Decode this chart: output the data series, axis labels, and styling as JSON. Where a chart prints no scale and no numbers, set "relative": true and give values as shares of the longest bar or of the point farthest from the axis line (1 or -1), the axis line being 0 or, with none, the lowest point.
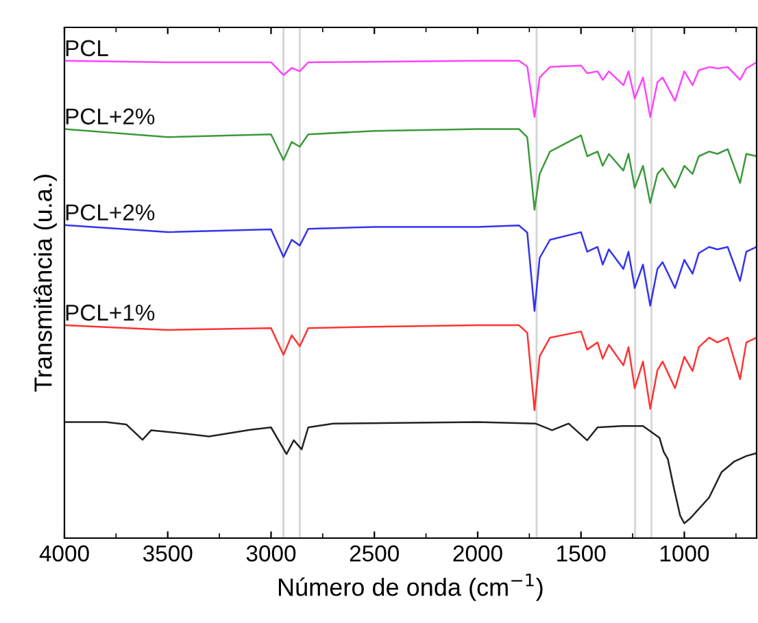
{
  "chart_data": {
    "type": "line",
    "relative": true,
    "xlabel": "Número de onda (cm$^{−1}$)",
    "ylabel": "Transmitância (u.a.)",
    "xlim": [
      4000,
      650
    ],
    "xticks": [
      4000,
      3500,
      3000,
      2500,
      2000,
      1500,
      1000
    ],
    "grid": false,
    "legend": false,
    "marker": "none",
    "line_style": "solid",
    "ref_lines": [
      {
        "axis": "x",
        "value": 2940,
        "color": "#d4d4d4"
      },
      {
        "axis": "x",
        "value": 2861,
        "color": "#d4d4d4"
      },
      {
        "axis": "x",
        "value": 1715,
        "color": "#d4d4d4"
      },
      {
        "axis": "x",
        "value": 1238,
        "color": "#d4d4d4"
      },
      {
        "axis": "x",
        "value": 1159,
        "color": "#d4d4d4"
      }
    ],
    "x": [
      4000,
      3500,
      3000,
      2940,
      2900,
      2861,
      2820,
      2500,
      2000,
      1800,
      1760,
      1725,
      1700,
      1650,
      1500,
      1470,
      1420,
      1395,
      1365,
      1295,
      1270,
      1240,
      1200,
      1165,
      1130,
      1105,
      1045,
      1000,
      960,
      930,
      880,
      840,
      790,
      730,
      700,
      650
    ],
    "series": [
      {
        "name": "PCL",
        "color": "#ff44ff",
        "values": [
          1.0,
          0.997,
          0.997,
          0.97,
          0.985,
          0.978,
          0.997,
          0.998,
          1.0,
          1.0,
          0.988,
          0.882,
          0.965,
          0.987,
          0.99,
          0.974,
          0.978,
          0.96,
          0.978,
          0.949,
          0.978,
          0.921,
          0.965,
          0.882,
          0.955,
          0.965,
          0.916,
          0.978,
          0.949,
          0.98,
          0.987,
          0.984,
          0.987,
          0.96,
          0.984,
          0.997
        ]
      },
      {
        "name": "PCL+2%",
        "color": "#3a9a3a",
        "values": [
          0.857,
          0.84,
          0.846,
          0.792,
          0.83,
          0.82,
          0.846,
          0.853,
          0.857,
          0.857,
          0.84,
          0.688,
          0.763,
          0.81,
          0.844,
          0.8,
          0.81,
          0.78,
          0.805,
          0.77,
          0.805,
          0.734,
          0.78,
          0.702,
          0.763,
          0.775,
          0.734,
          0.78,
          0.763,
          0.8,
          0.81,
          0.805,
          0.815,
          0.744,
          0.805,
          0.8
        ]
      },
      {
        "name": "PCL+2%",
        "color": "#3333ee",
        "values": [
          0.656,
          0.641,
          0.647,
          0.589,
          0.625,
          0.613,
          0.648,
          0.652,
          0.652,
          0.655,
          0.64,
          0.476,
          0.587,
          0.625,
          0.641,
          0.6,
          0.61,
          0.573,
          0.605,
          0.564,
          0.6,
          0.524,
          0.573,
          0.487,
          0.564,
          0.578,
          0.524,
          0.583,
          0.554,
          0.597,
          0.61,
          0.605,
          0.61,
          0.539,
          0.6,
          0.61
        ]
      },
      {
        "name": "PCL+1%",
        "color": "#ff3333",
        "values": [
          0.446,
          0.436,
          0.44,
          0.384,
          0.425,
          0.402,
          0.44,
          0.443,
          0.446,
          0.446,
          0.43,
          0.268,
          0.381,
          0.42,
          0.433,
          0.395,
          0.41,
          0.376,
          0.405,
          0.362,
          0.4,
          0.314,
          0.37,
          0.271,
          0.352,
          0.37,
          0.314,
          0.38,
          0.35,
          0.4,
          0.42,
          0.41,
          0.42,
          0.333,
          0.41,
          0.42
        ]
      },
      {
        "color": "#222222",
        "x": [
          4000,
          3800,
          3700,
          3622,
          3580,
          3400,
          3300,
          3100,
          3000,
          2925,
          2890,
          2852,
          2820,
          2700,
          2000,
          1720,
          1640,
          1560,
          1470,
          1420,
          1300,
          1200,
          1120,
          1100,
          1080,
          1050,
          1020,
          1000,
          970,
          930,
          880,
          820,
          760,
          700,
          650
        ],
        "values": [
          0.243,
          0.243,
          0.238,
          0.206,
          0.226,
          0.218,
          0.213,
          0.227,
          0.232,
          0.176,
          0.205,
          0.186,
          0.232,
          0.24,
          0.243,
          0.24,
          0.226,
          0.24,
          0.205,
          0.232,
          0.235,
          0.235,
          0.21,
          0.181,
          0.166,
          0.104,
          0.047,
          0.031,
          0.042,
          0.061,
          0.085,
          0.138,
          0.16,
          0.172,
          0.178
        ]
      }
    ]
  }
}
